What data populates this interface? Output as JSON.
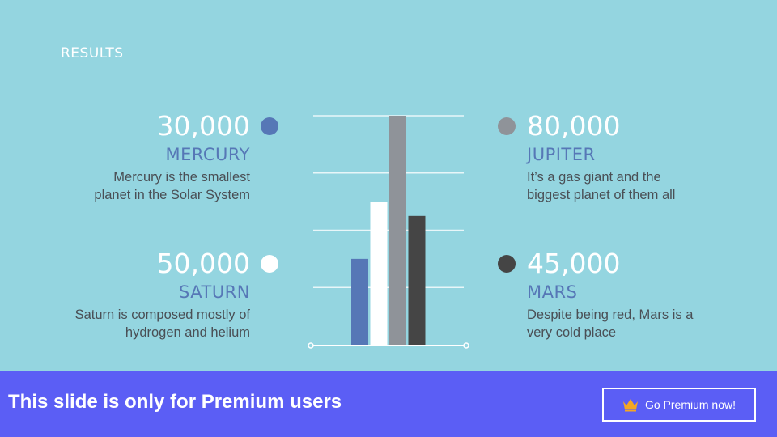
{
  "slide": {
    "section_label": "RESULTS",
    "stats": [
      {
        "value": "30,000",
        "name": "MERCURY",
        "desc_line1": "Mercury is the smallest",
        "desc_line2": "planet in the Solar System"
      },
      {
        "value": "50,000",
        "name": "SATURN",
        "desc_line1": "Saturn is composed mostly of",
        "desc_line2": "hydrogen and helium"
      },
      {
        "value": "80,000",
        "name": "JUPITER",
        "desc_line1": "It’s a gas giant and the",
        "desc_line2": "biggest planet of them all"
      },
      {
        "value": "45,000",
        "name": "MARS",
        "desc_line1": "Despite being red, Mars is a",
        "desc_line2": "very cold place"
      }
    ]
  },
  "colors": {
    "background": "#94d5e0",
    "name_text": "#5677b6",
    "mercury": "#5677b6",
    "saturn": "#ffffff",
    "jupiter": "#8f9399",
    "mars": "#454545",
    "gridline": "#e8f6f9",
    "banner": "#5b5ef5"
  },
  "chart_data": {
    "type": "bar",
    "categories": [
      "Mercury",
      "Saturn",
      "Jupiter",
      "Mars"
    ],
    "values": [
      30000,
      50000,
      80000,
      45000
    ],
    "ylim": [
      0,
      80000
    ],
    "grid": true,
    "legend": "none"
  },
  "banner": {
    "message": "This slide is only for Premium users",
    "button_label": "Go Premium now!",
    "button_icon": "crown-icon"
  }
}
